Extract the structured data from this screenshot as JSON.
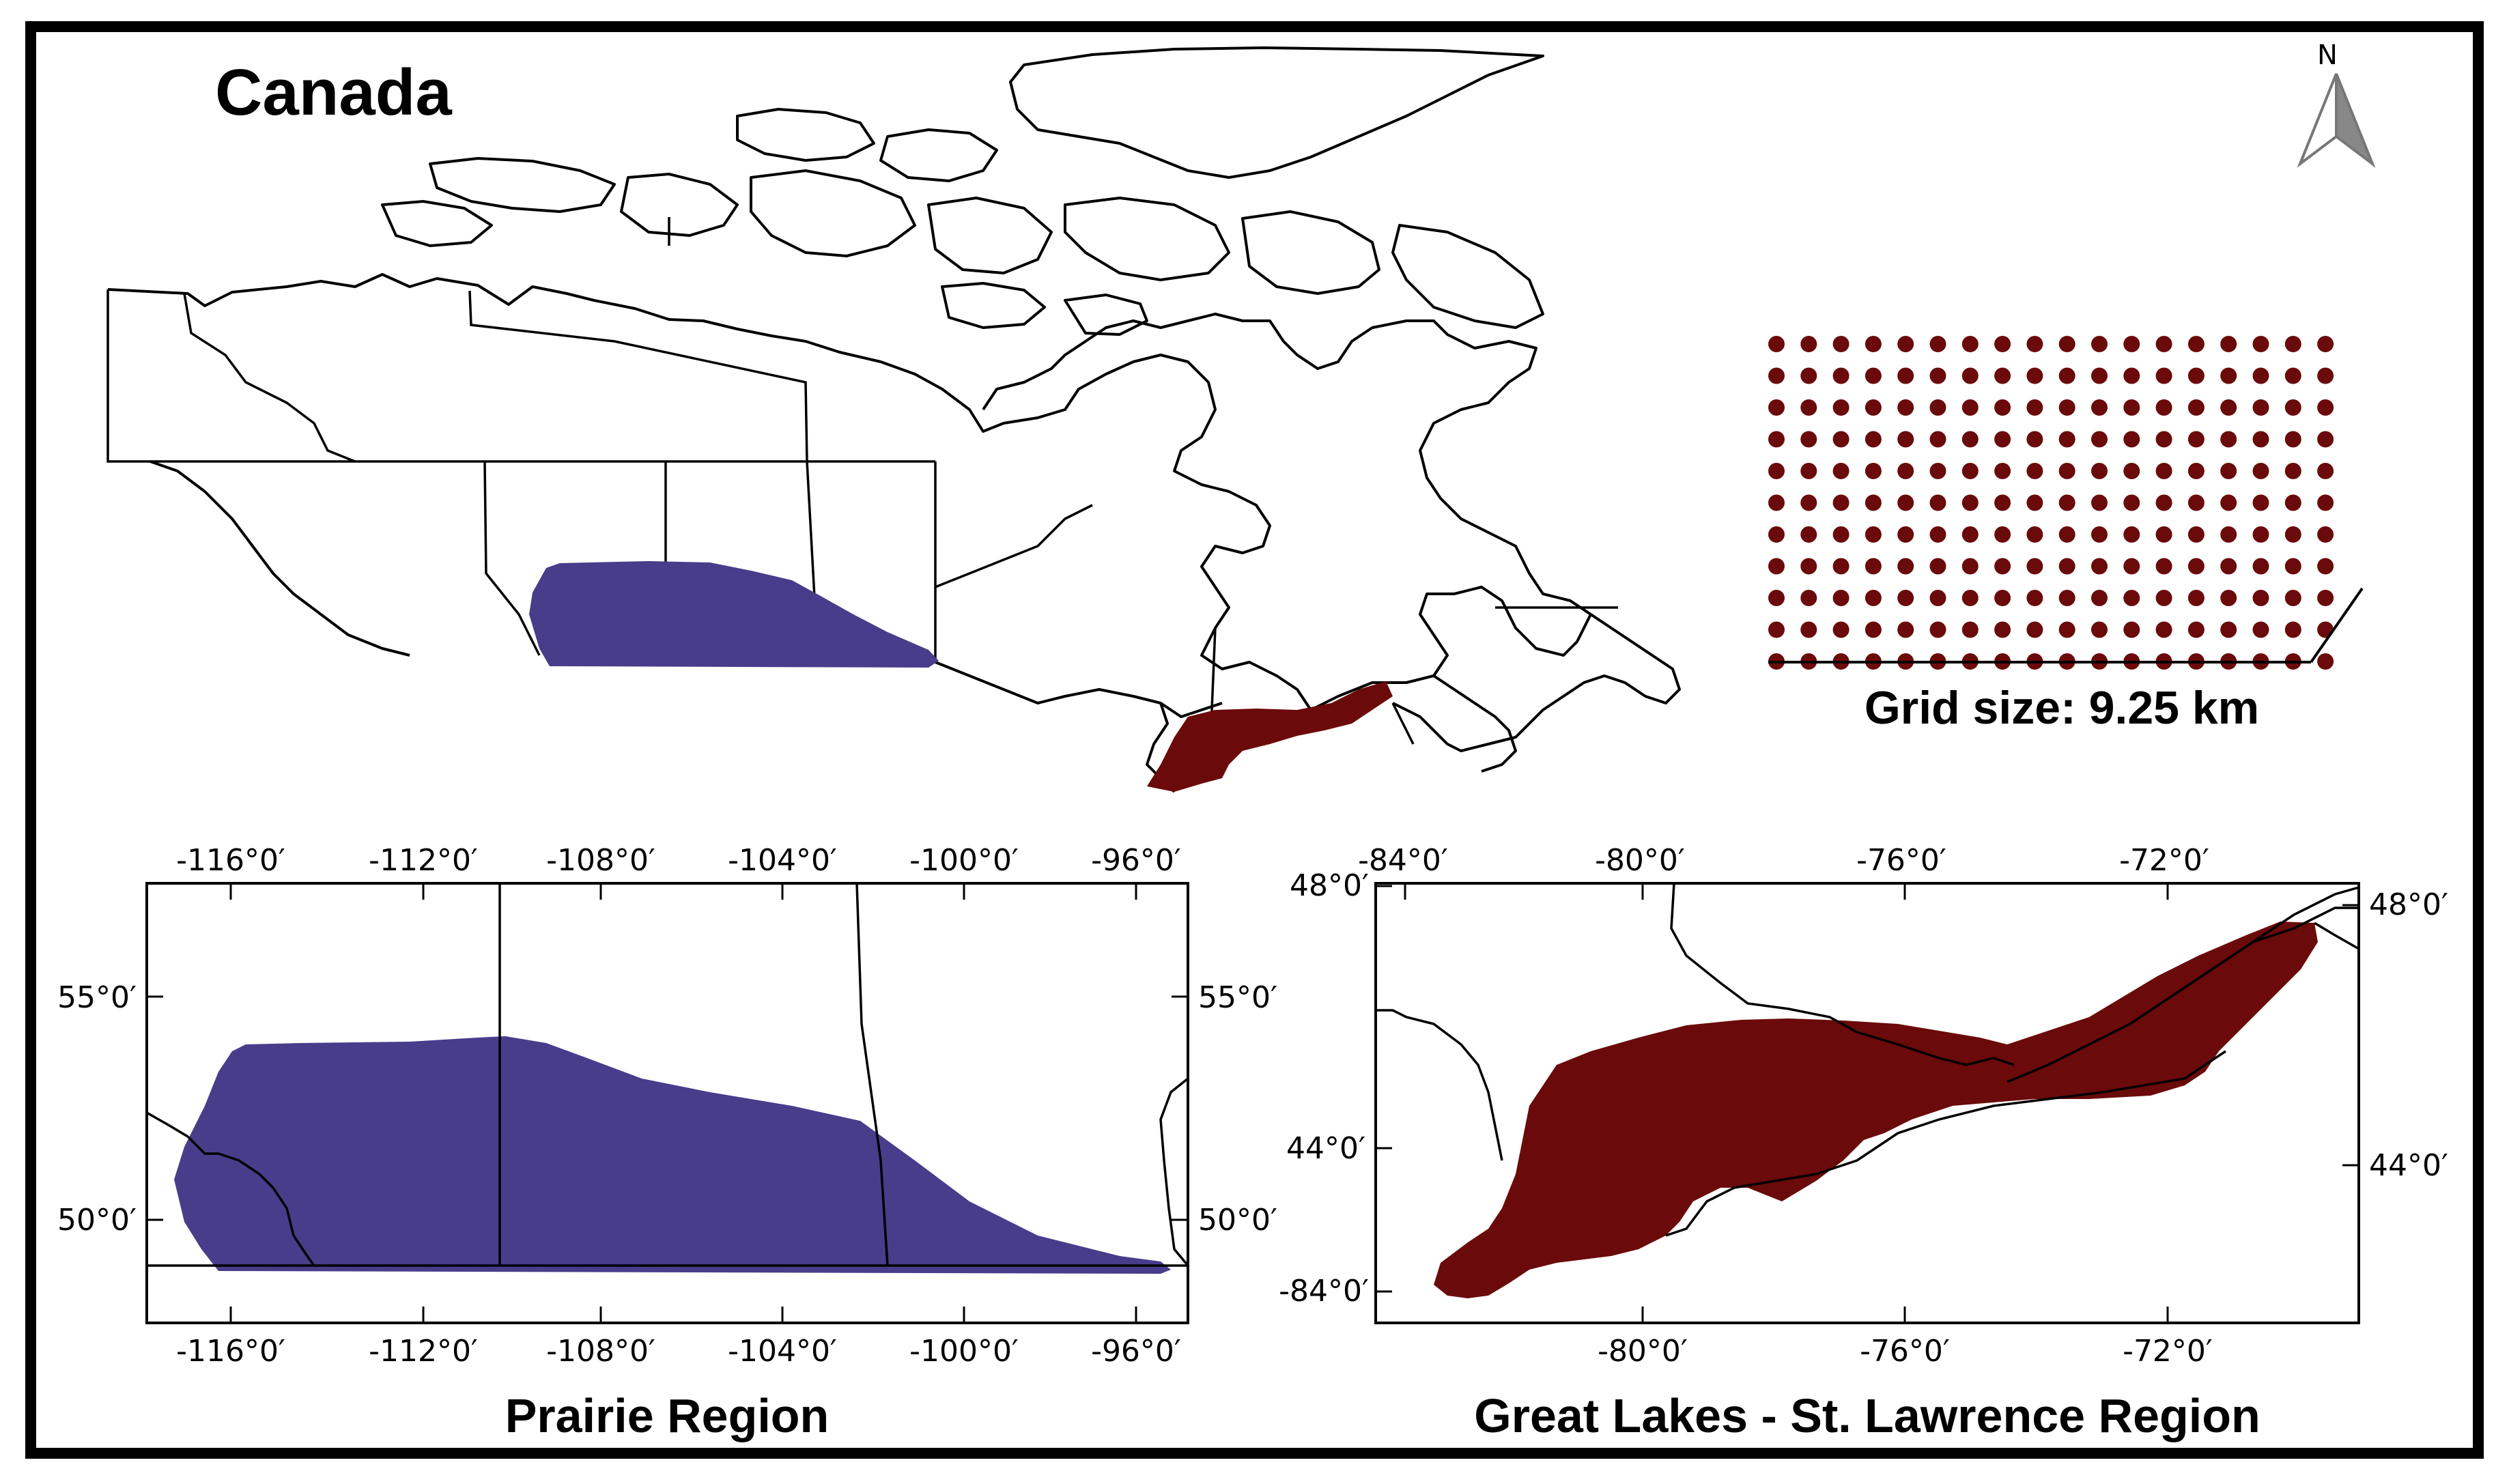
{
  "main_title": "Canada",
  "north_arrow": {
    "label": "N",
    "icon": "north-arrow-icon"
  },
  "grid_legend": {
    "label": "Grid size: 9.25 km",
    "dot_color": "#6b0a0a",
    "rows": 11,
    "cols": 18
  },
  "colors": {
    "prairie": "#483d8b",
    "great_lakes": "#6b0a0a",
    "frame": "#000000"
  },
  "prairie_panel": {
    "title": "Prairie Region",
    "top_ticks": [
      "-116°0′",
      "-112°0′",
      "-108°0′",
      "-104°0′",
      "-100°0′",
      "-96°0′"
    ],
    "bottom_ticks": [
      "-116°0′",
      "-112°0′",
      "-108°0′",
      "-104°0′",
      "-100°0′",
      "-96°0′"
    ],
    "left_ticks": [
      "55°0′",
      "50°0′"
    ],
    "right_ticks": [
      "55°0′",
      "50°0′"
    ]
  },
  "great_lakes_panel": {
    "title": "Great Lakes - St. Lawrence Region",
    "top_ticks": [
      "-84°0′",
      "-80°0′",
      "-76°0′",
      "-72°0′"
    ],
    "bottom_ticks": [
      "-80°0′",
      "-76°0′",
      "-72°0′"
    ],
    "left_ticks": [
      "48°0′",
      "44°0′",
      "-84°0′"
    ],
    "right_ticks": [
      "48°0′",
      "44°0′"
    ]
  }
}
